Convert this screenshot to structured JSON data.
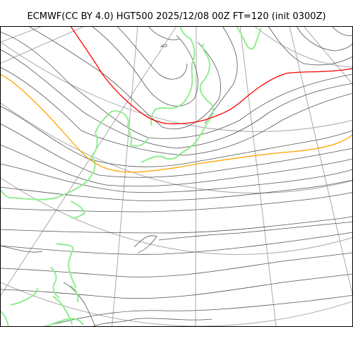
{
  "title": "ECMWF(CC BY 4.0) HGT500 2025/12/08 00Z FT=120 (init 0300Z)",
  "colors": {
    "background": "#ffffff",
    "contour": "#555555",
    "graticule": "#aaaaaa",
    "coast": "#555555",
    "land_highlight": "#90ee90",
    "contour_highlight_red": "#ff0000",
    "contour_highlight_orange": "#ffa500",
    "frame": "#000000"
  }
}
